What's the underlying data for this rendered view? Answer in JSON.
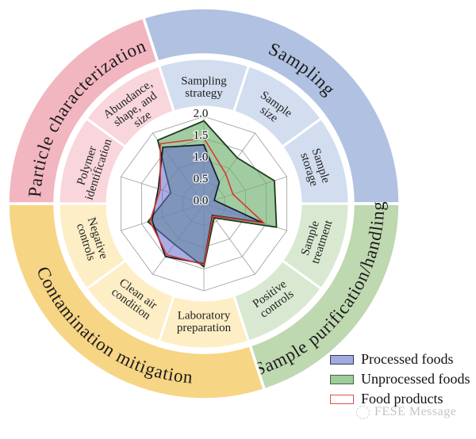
{
  "chart_data": {
    "type": "radar",
    "rmin": 0,
    "rmax": 2,
    "tick_step": 0.5,
    "radial_tick_labels": [
      "0.0",
      "0.5",
      "1.0",
      "1.5",
      "2.0"
    ],
    "categories": [
      "Sampling strategy",
      "Sample size",
      "Sample storage",
      "Sample treatment",
      "Positive controls",
      "Laboratory preparation",
      "Clean air condition",
      "Negative controls",
      "Polymer identification",
      "Abundance, shape, and size"
    ],
    "category_lines": [
      [
        "Sampling",
        "strategy"
      ],
      [
        "Sample",
        "size"
      ],
      [
        "Sample",
        "storage"
      ],
      [
        "Sample",
        "treatment"
      ],
      [
        "Positive",
        "controls"
      ],
      [
        "Laboratory",
        "preparation"
      ],
      [
        "Clean air",
        "condition"
      ],
      [
        "Negative",
        "controls"
      ],
      [
        "Polymer",
        "identification"
      ],
      [
        "Abundance,",
        "shape, and",
        "size"
      ]
    ],
    "series": [
      {
        "name": "Processed foods",
        "values": [
          1.35,
          0.6,
          0.25,
          1.4,
          0.33,
          1.38,
          1.5,
          1.25,
          1.1,
          1.6
        ],
        "fill": "rgba(100,105,205,0.55)",
        "stroke": "#141c2e",
        "stroke_width": 1.7,
        "legend_fill": "#a2abe0",
        "legend_border": "#333a57"
      },
      {
        "name": "Unprocessed foods",
        "values": [
          1.9,
          1.3,
          1.7,
          1.75,
          0.4,
          1.45,
          1.15,
          1.35,
          0.8,
          1.8
        ],
        "fill": "rgba(110,175,110,0.65)",
        "stroke": "#1c3a1c",
        "stroke_width": 1.8,
        "legend_fill": "#a0cb9c",
        "legend_border": "#44633f"
      },
      {
        "name": "Food products",
        "values": [
          1.5,
          0.85,
          0.7,
          1.45,
          0.35,
          1.4,
          1.45,
          1.3,
          1.05,
          1.7
        ],
        "fill": "none",
        "stroke": "#d6392e",
        "stroke_width": 1.6,
        "legend_fill": "#ffffff",
        "legend_border": "#d9534a"
      }
    ],
    "draw_order": [
      1,
      0,
      2
    ],
    "groups": [
      {
        "label": "Sampling",
        "outer_color": "#b0c1e1",
        "inner_color": "#d2ddef",
        "start_deg": -18,
        "end_deg": 90,
        "flip": false
      },
      {
        "label": "Sample purification/handling",
        "outer_color": "#bed8b0",
        "inner_color": "#d9e9d1",
        "start_deg": 90,
        "end_deg": 162,
        "flip": true
      },
      {
        "label": "Contamination mitigation",
        "outer_color": "#f6d584",
        "inner_color": "#fdeec6",
        "start_deg": 162,
        "end_deg": 270,
        "flip": true
      },
      {
        "label": "Particle characterization",
        "outer_color": "#f2b6c1",
        "inner_color": "#f8d6dc",
        "start_deg": 270,
        "end_deg": 342,
        "flip": false
      }
    ],
    "sector_group": [
      0,
      0,
      0,
      1,
      1,
      2,
      2,
      2,
      3,
      3
    ],
    "grid_color": "#9b9b9b",
    "legend_position": "bottom-right"
  },
  "legend": {
    "items": [
      {
        "label": "Processed foods"
      },
      {
        "label": "Unprocessed foods"
      },
      {
        "label": "Food products"
      }
    ]
  },
  "watermark": {
    "text": "FESE Message"
  }
}
